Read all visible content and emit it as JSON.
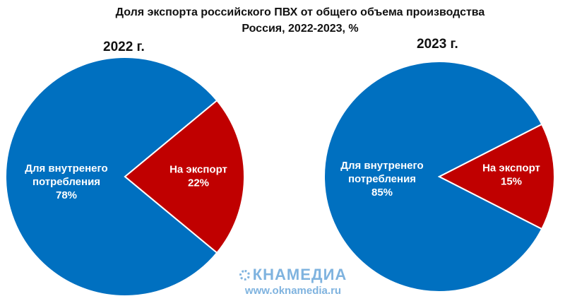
{
  "chart_title_line1": "Доля экспорта российского ПВХ от общего объема производства",
  "chart_title_line2": "Россия, 2022-2023, %",
  "watermark": {
    "logo_text": "КНАМЕДИА",
    "url": "www.oknamedia.ru"
  },
  "colors": {
    "domestic": "#0070c0",
    "export": "#c00000"
  },
  "chart_data": [
    {
      "type": "pie",
      "title": "2022 г.",
      "categories": [
        "Для внутренего потребления",
        "На экспорт"
      ],
      "values": [
        78,
        22
      ],
      "labels": [
        {
          "line1": "Для внутренего",
          "line2": "потребления",
          "value": "78%"
        },
        {
          "line1": "На экспорт",
          "line2": "",
          "value": "22%"
        }
      ]
    },
    {
      "type": "pie",
      "title": "2023 г.",
      "categories": [
        "Для внутренего потребления",
        "На экспорт"
      ],
      "values": [
        85,
        15
      ],
      "labels": [
        {
          "line1": "Для внутренего",
          "line2": "потребления",
          "value": "85%"
        },
        {
          "line1": "На экспорт",
          "line2": "",
          "value": "15%"
        }
      ]
    }
  ]
}
